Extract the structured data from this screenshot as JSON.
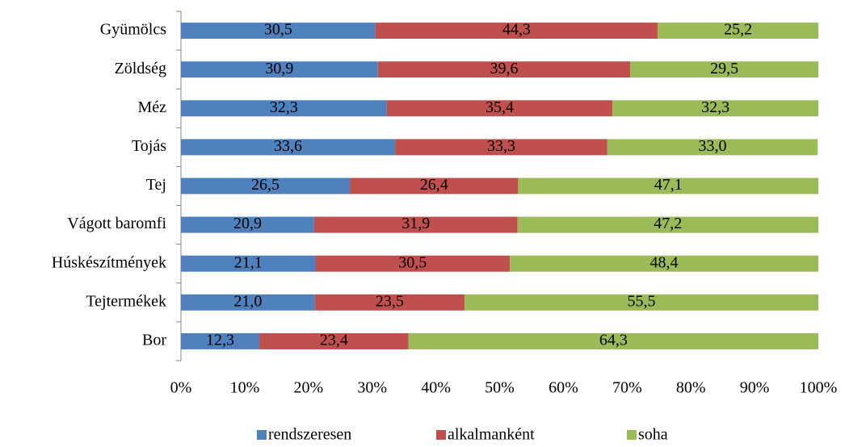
{
  "chart_data": {
    "type": "bar",
    "orientation": "horizontal",
    "stacked": true,
    "categories": [
      "Gyümölcs",
      "Zöldség",
      "Méz",
      "Tojás",
      "Tej",
      "Vágott baromfi",
      "Húskészítmények",
      "Tejtermékek",
      "Bor"
    ],
    "series": [
      {
        "name": "rendszeresen",
        "color": "#4f81bd",
        "values": [
          30.5,
          30.9,
          32.3,
          33.6,
          26.5,
          20.9,
          21.1,
          21.0,
          12.3
        ],
        "value_labels": [
          "30,5",
          "30,9",
          "32,3",
          "33,6",
          "26,5",
          "20,9",
          "21,1",
          "21,0",
          "12,3"
        ]
      },
      {
        "name": "alkalmanként",
        "color": "#c0504d",
        "values": [
          44.3,
          39.6,
          35.4,
          33.3,
          26.4,
          31.9,
          30.5,
          23.5,
          23.4
        ],
        "value_labels": [
          "44,3",
          "39,6",
          "35,4",
          "33,3",
          "26,4",
          "31,9",
          "30,5",
          "23,5",
          "23,4"
        ]
      },
      {
        "name": "soha",
        "color": "#9bbb59",
        "values": [
          25.2,
          29.5,
          32.3,
          33.0,
          47.1,
          47.2,
          48.4,
          55.5,
          64.3
        ],
        "value_labels": [
          "25,2",
          "29,5",
          "32,3",
          "33,0",
          "47,1",
          "47,2",
          "48,4",
          "55,5",
          "64,3"
        ]
      }
    ],
    "xlim": [
      0,
      100
    ],
    "xticks": [
      {
        "value": 0,
        "label": "0%"
      },
      {
        "value": 10,
        "label": "10%"
      },
      {
        "value": 20,
        "label": "20%"
      },
      {
        "value": 30,
        "label": "30%"
      },
      {
        "value": 40,
        "label": "40%"
      },
      {
        "value": 50,
        "label": "50%"
      },
      {
        "value": 60,
        "label": "60%"
      },
      {
        "value": 70,
        "label": "70%"
      },
      {
        "value": 80,
        "label": "80%"
      },
      {
        "value": 90,
        "label": "90%"
      },
      {
        "value": 100,
        "label": "100%"
      }
    ],
    "legend": "bottom"
  }
}
